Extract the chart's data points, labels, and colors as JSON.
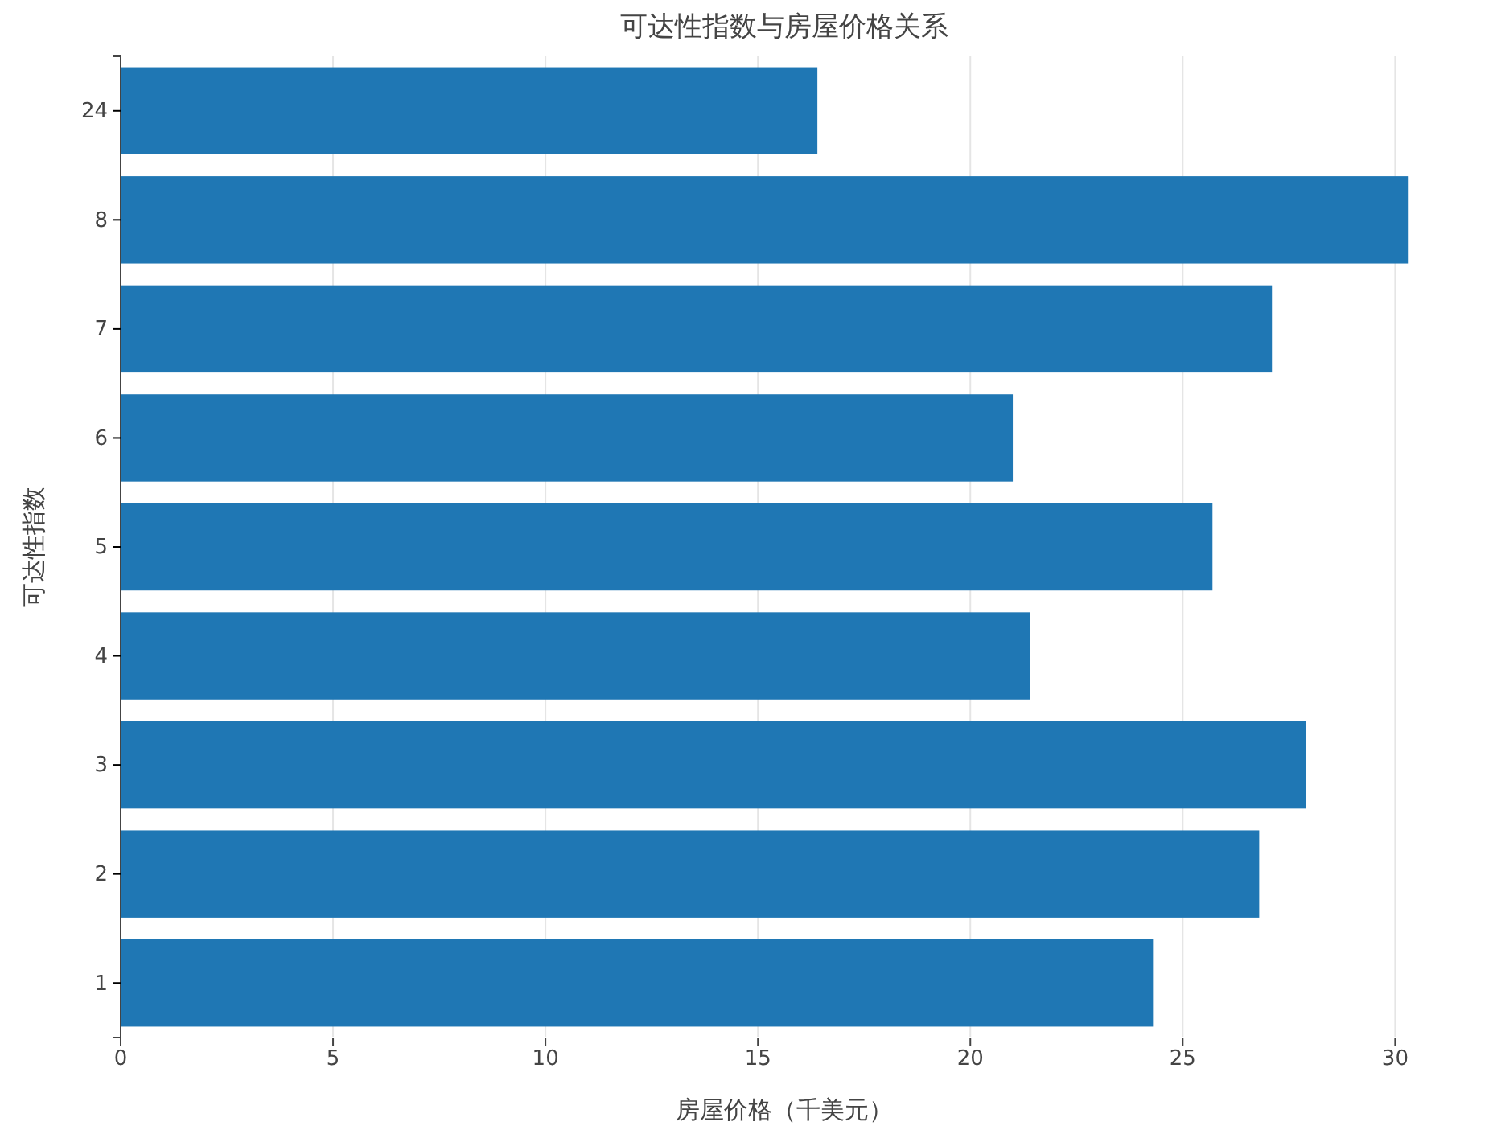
{
  "chart_data": {
    "type": "bar",
    "orientation": "horizontal",
    "title": "可达性指数与房屋价格关系",
    "xlabel": "房屋价格（千美元）",
    "ylabel": "可达性指数",
    "categories": [
      "24",
      "8",
      "7",
      "6",
      "5",
      "4",
      "3",
      "2",
      "1"
    ],
    "values": [
      16.4,
      30.3,
      27.1,
      21.0,
      25.7,
      21.4,
      27.9,
      26.8,
      24.3
    ],
    "color": "#1f77b4",
    "xlim": [
      0,
      32
    ],
    "xticks": [
      0,
      5,
      10,
      15,
      20,
      25,
      30
    ],
    "grid": "x"
  }
}
